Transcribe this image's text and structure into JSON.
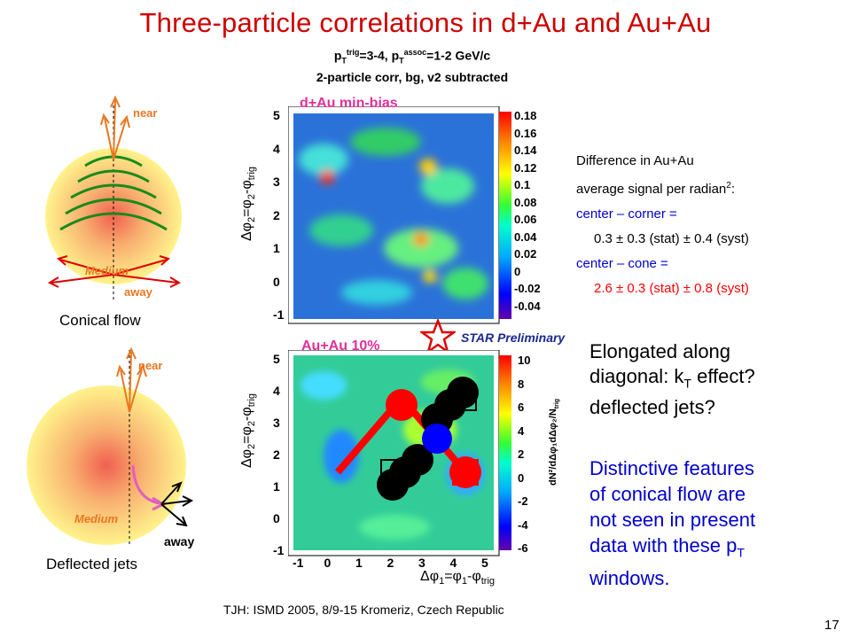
{
  "title": "Three-particle correlations in d+Au and Au+Au",
  "subtitle": {
    "pt_prefix": "p",
    "pt_sub": "T",
    "trig_sup": "trig",
    "mid1": "=3-4, p",
    "assoc_sup": "assoc",
    "mid2": "=1-2 GeV/c",
    "line2": "2-particle corr, bg, v2 subtracted"
  },
  "top_panel": {
    "label": "d+Au min-bias",
    "y_ticks": [
      "5",
      "4",
      "3",
      "2",
      "1",
      "0",
      "-1"
    ],
    "colorbar_ticks": [
      "0.18",
      "0.16",
      "0.14",
      "0.12",
      "0.1",
      "0.08",
      "0.06",
      "0.04",
      "0.02",
      "0",
      "-0.02",
      "-0.04"
    ]
  },
  "bottom_panel": {
    "label": "Au+Au 10%",
    "y_ticks": [
      "5",
      "4",
      "3",
      "2",
      "1",
      "0",
      "-1"
    ],
    "x_ticks": [
      "-1",
      "0",
      "1",
      "2",
      "3",
      "4",
      "5"
    ],
    "colorbar_ticks": [
      "10",
      "8",
      "6",
      "4",
      "2",
      "0",
      "-2",
      "-4",
      "-6"
    ]
  },
  "axes": {
    "ylabel_main": "Δφ",
    "ylabel_sub": "2",
    "ylabel_mid": "=φ",
    "ylabel_sub2": "2",
    "ylabel_end": "-φ",
    "ylabel_trig": "trig",
    "xlabel_main": "Δφ",
    "xlabel_sub": "1",
    "xlabel_mid": "=φ",
    "xlabel_sub2": "1",
    "xlabel_end": "-φ",
    "xlabel_trig": "trig",
    "zlabel": "dN²/dΔφ₁dΔφ₂/N",
    "zlabel_sub": "trig"
  },
  "star_preliminary": "STAR Preliminary",
  "conical": {
    "near": "near",
    "medium": "Medium",
    "away": "away",
    "caption": "Conical flow"
  },
  "deflected": {
    "near": "near",
    "medium": "Medium",
    "away": "away",
    "caption": "Deflected jets"
  },
  "difference": {
    "line1": "Difference in Au+Au",
    "line2_a": "average signal per radian",
    "line2_sup": "2",
    "line2_b": ":",
    "center_corner": "center – corner =",
    "center_corner_val": "0.3 ± 0.3 (stat) ± 0.4 (syst)",
    "center_cone": "center – cone =",
    "center_cone_val": "2.6 ± 0.3 (stat) ± 0.8 (syst)"
  },
  "elongated": {
    "line1": "Elongated along",
    "line2_a": "diagonal: k",
    "line2_sub": "T",
    "line2_b": " effect?",
    "line3": "deflected jets?"
  },
  "distinctive": {
    "line1": "Distinctive features",
    "line2": "of conical flow are",
    "line3": "not seen in present",
    "line4_a": "data with these p",
    "line4_sub": "T",
    "line5": "windows."
  },
  "footer": "TJH: ISMD 2005, 8/9-15 Kromeriz, Czech Republic",
  "page_number": "17",
  "colors": {
    "title": "#cc0000",
    "blue_text": "#0000cc",
    "red_text": "#ff0000",
    "diagram_orange": "#e87722",
    "panel_label": "#e0309a"
  }
}
